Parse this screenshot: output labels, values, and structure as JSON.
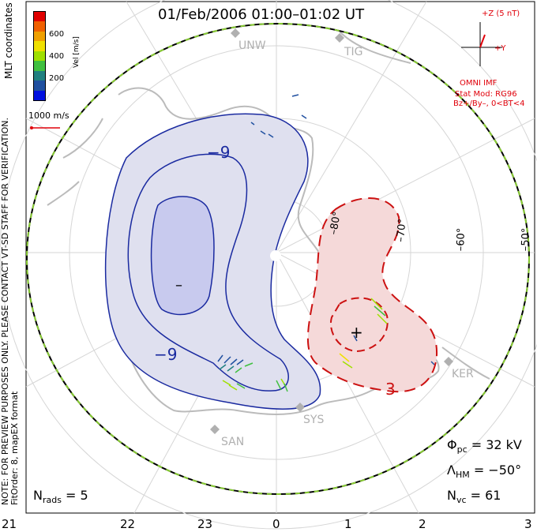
{
  "header": {
    "title": "01/Feb/2006 01:00–01:02 UT"
  },
  "side_notes": {
    "coordinates": "MLT coordinates",
    "preview": "NOTE: FOR PREVIEW PURPOSES ONLY. PLEASE CONTACT VT-SD STAFF FOR VERIFICATION.",
    "fit_order": "FitOrder: 8, mapEX format"
  },
  "colorbar": {
    "title": "Vel [m/s]",
    "ticks": [
      "600",
      "400",
      "200"
    ],
    "colors": [
      "#e00000",
      "#f06000",
      "#f0a000",
      "#f0e000",
      "#a0e000",
      "#40c040",
      "#208080",
      "#2050a0",
      "#0010e0"
    ]
  },
  "scale_label": "1000 m/s",
  "imf": {
    "z_label": "+Z (5 nT)",
    "y_label": "+Y",
    "source": "OMNI IMF",
    "model": "Stat Mod: RG96",
    "condition": "Bz+/By–, 0<BT<4"
  },
  "sites": [
    "UNW",
    "TIG",
    "KER",
    "SYS",
    "SAN"
  ],
  "latitude_labels": [
    "–80°",
    "–70°",
    "–60°",
    "–50°"
  ],
  "contours": {
    "negative_label": "−9",
    "positive_label": "3",
    "min_marker": "–",
    "max_marker": "+"
  },
  "stats": {
    "n_rads_label": "N",
    "n_rads_sub": "rads",
    "n_rads_value": "= 5",
    "phi_label": "Φ",
    "phi_sub": "pc",
    "phi_value": "= 32 kV",
    "lambda_label": "Λ",
    "lambda_sub": "HM",
    "lambda_value": "= −50°",
    "nvc_label": "N",
    "nvc_sub": "vc",
    "nvc_value": "= 61"
  },
  "mlt_axis": [
    "21",
    "22",
    "23",
    "0",
    "1",
    "2",
    "3"
  ],
  "style": {
    "negative_color": "#1a2aa0",
    "positive_color": "#cc1111",
    "negative_fill": "#dfe0ef",
    "negative_inner": "#c8caee",
    "positive_fill": "#f5d9d9",
    "boundary": "#88cc33",
    "grid": "#d6d6d6",
    "land": "#bbbbbb"
  }
}
